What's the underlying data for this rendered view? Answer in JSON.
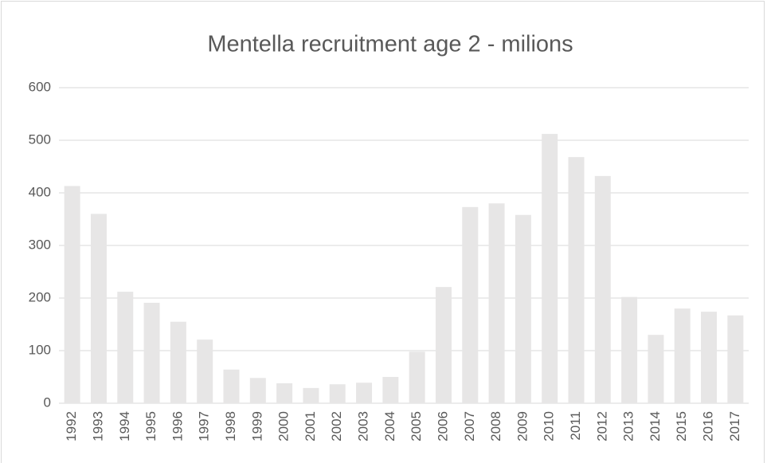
{
  "chart_data": {
    "type": "bar",
    "title": "Mentella recruitment age 2 - milions",
    "categories": [
      "1992",
      "1993",
      "1994",
      "1995",
      "1996",
      "1997",
      "1998",
      "1999",
      "2000",
      "2001",
      "2002",
      "2003",
      "2004",
      "2005",
      "2006",
      "2007",
      "2008",
      "2009",
      "2010",
      "2011",
      "2012",
      "2013",
      "2014",
      "2015",
      "2016",
      "2017"
    ],
    "values": [
      413,
      360,
      212,
      191,
      155,
      121,
      64,
      48,
      38,
      29,
      36,
      39,
      50,
      98,
      221,
      373,
      380,
      358,
      512,
      468,
      432,
      202,
      130,
      180,
      174,
      167
    ],
    "color": "#e7e6e6",
    "ylim": [
      0,
      600
    ],
    "yticks": [
      0,
      100,
      200,
      300,
      400,
      500,
      600
    ],
    "grid": true
  }
}
